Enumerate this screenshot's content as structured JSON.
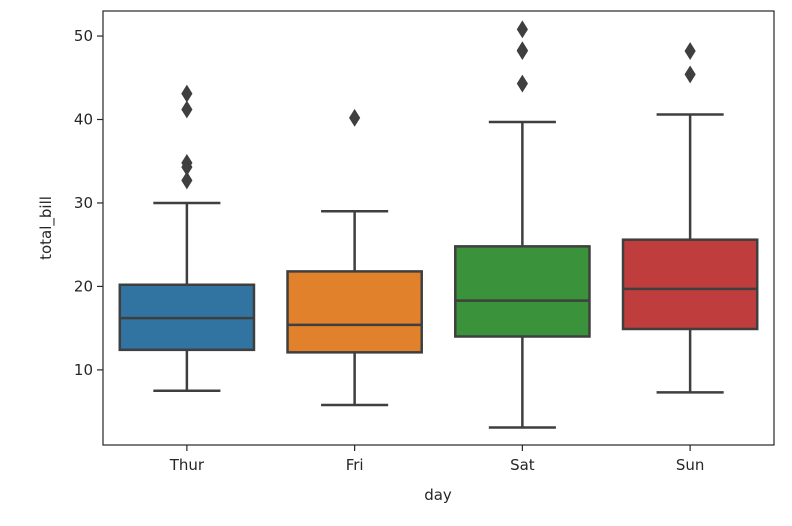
{
  "chart_data": {
    "type": "box",
    "xlabel": "day",
    "ylabel": "total_bill",
    "ylim": [
      1.0,
      53.0
    ],
    "yticks": [
      10,
      20,
      30,
      40,
      50
    ],
    "categories": [
      "Thur",
      "Fri",
      "Sat",
      "Sun"
    ],
    "grid": false,
    "series": [
      {
        "category": "Thur",
        "color": "#3274a1",
        "whisker_low": 7.5,
        "q1": 12.4,
        "median": 16.2,
        "q3": 20.2,
        "whisker_high": 30.0,
        "outliers": [
          32.7,
          34.3,
          34.8,
          41.2,
          43.1
        ]
      },
      {
        "category": "Fri",
        "color": "#e1812c",
        "whisker_low": 5.8,
        "q1": 12.1,
        "median": 15.4,
        "q3": 21.8,
        "whisker_high": 29.0,
        "outliers": [
          40.2
        ]
      },
      {
        "category": "Sat",
        "color": "#3a923a",
        "whisker_low": 3.1,
        "q1": 14.0,
        "median": 18.3,
        "q3": 24.8,
        "whisker_high": 39.7,
        "outliers": [
          44.3,
          48.2,
          48.3,
          50.8
        ]
      },
      {
        "category": "Sun",
        "color": "#c03d3e",
        "whisker_low": 7.3,
        "q1": 14.9,
        "median": 19.7,
        "q3": 25.6,
        "whisker_high": 40.6,
        "outliers": [
          45.4,
          48.2
        ]
      }
    ]
  }
}
